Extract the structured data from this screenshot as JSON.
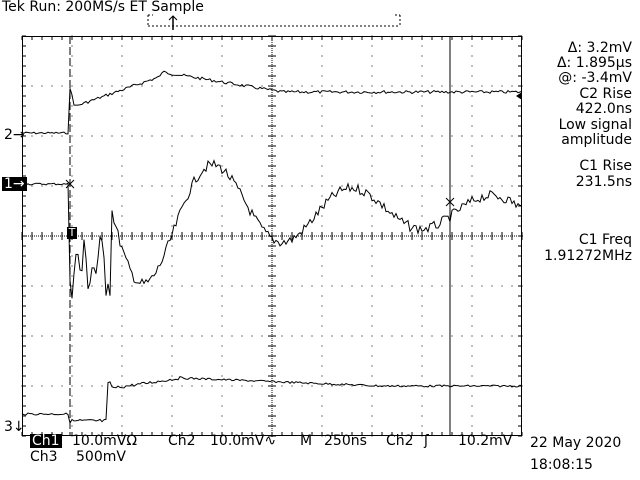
{
  "header": {
    "title": "Tek Run: 200MS/s ET Sample"
  },
  "readouts": {
    "delta_v": "Δ: 3.2mV",
    "delta_t": "Δ: 1.895μs",
    "at_value": "@: -3.4mV",
    "c2_rise_label": "C2 Rise",
    "c2_rise_value": "422.0ns",
    "warning_line1": "Low signal",
    "warning_line2": "amplitude",
    "c1_rise_label": "C1 Rise",
    "c1_rise_value": "231.5ns",
    "c1_freq_label": "C1 Freq",
    "c1_freq_value": "1.91272MHz"
  },
  "channel_markers": {
    "ch2": "2→",
    "ch1": "1→",
    "ch3": "3↓",
    "trigger": "T"
  },
  "status_bar": {
    "ch1_label": "Ch1",
    "ch1_scale": "10.0mVΩ",
    "ch2_label": "Ch2",
    "ch2_scale": "10.0mV∿",
    "timebase_label": "M",
    "timebase": "250ns",
    "trig_source": "Ch2",
    "trig_slope": "ʃ",
    "trig_level": "10.2mV",
    "ch3_label": "Ch3",
    "ch3_scale": "500mV",
    "date": "22 May 2020",
    "time": "18:08:15"
  },
  "colors": {
    "background": "#ffffff",
    "trace": "#000000",
    "graticule": "#000000"
  }
}
